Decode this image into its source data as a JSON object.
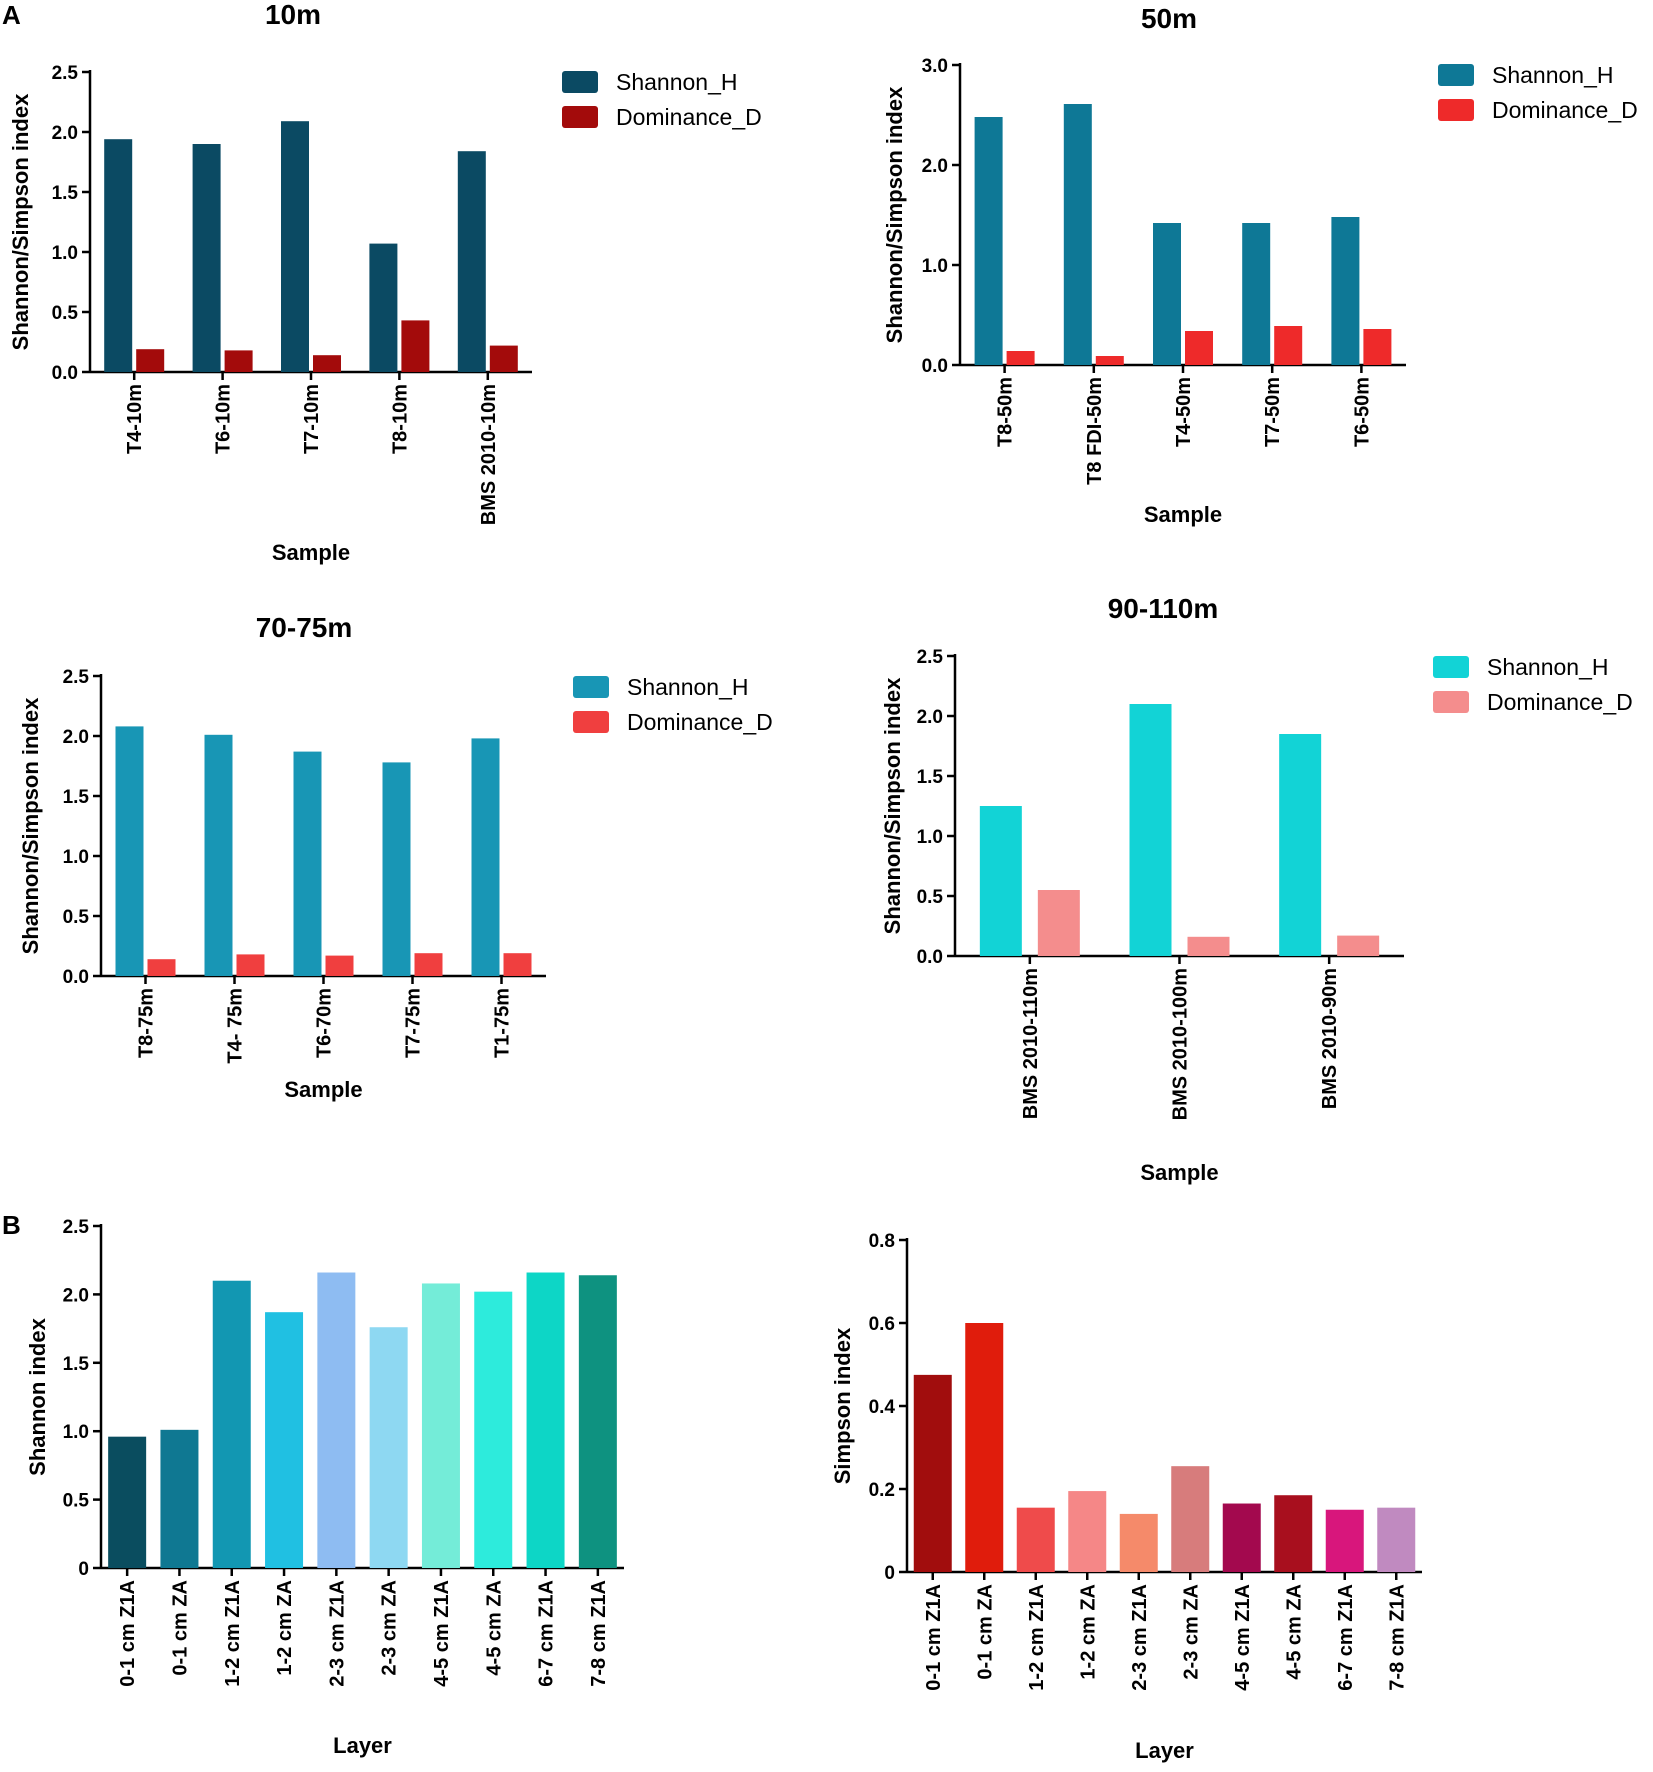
{
  "panel_labels": [
    "A",
    "B"
  ],
  "chart_data": [
    {
      "type": "bar",
      "title": "10m",
      "xlabel": "Sample",
      "ylabel": "Shannon/Simpson index",
      "ylim": [
        0,
        2.5
      ],
      "yticks": [
        "0.0",
        "0.5",
        "1.0",
        "1.5",
        "2.0",
        "2.5"
      ],
      "categories": [
        "T4-10m",
        "T6-10m",
        "T7-10m",
        "T8-10m",
        "BMS 2010-10m"
      ],
      "series": [
        {
          "name": "Shannon_H",
          "color": "#0b4a63",
          "values": [
            1.94,
            1.9,
            2.09,
            1.07,
            1.84
          ]
        },
        {
          "name": "Dominance_D",
          "color": "#a30b0b",
          "values": [
            0.19,
            0.18,
            0.14,
            0.43,
            0.22
          ]
        }
      ]
    },
    {
      "type": "bar",
      "title": "50m",
      "xlabel": "Sample",
      "ylabel": "Shannon/Simpson index",
      "ylim": [
        0,
        3.0
      ],
      "yticks": [
        "0.0",
        "1.0",
        "2.0",
        "3.0"
      ],
      "categories": [
        "T8-50m",
        "T8 FDI-50m",
        "T4-50m",
        "T7-50m",
        "T6-50m"
      ],
      "series": [
        {
          "name": "Shannon_H",
          "color": "#0e7896",
          "values": [
            2.48,
            2.61,
            1.42,
            1.42,
            1.48
          ]
        },
        {
          "name": "Dominance_D",
          "color": "#ee2a2a",
          "values": [
            0.14,
            0.09,
            0.34,
            0.39,
            0.36
          ]
        }
      ]
    },
    {
      "type": "bar",
      "title": "70-75m",
      "xlabel": "Sample",
      "ylabel": "Shannon/Simpson index",
      "ylim": [
        0,
        2.5
      ],
      "yticks": [
        "0.0",
        "0.5",
        "1.0",
        "1.5",
        "2.0",
        "2.5"
      ],
      "categories": [
        "T8-75m",
        "T4- 75m",
        "T6-70m",
        "T7-75m",
        "T1-75m"
      ],
      "series": [
        {
          "name": "Shannon_H",
          "color": "#1896b5",
          "values": [
            2.08,
            2.01,
            1.87,
            1.78,
            1.98
          ]
        },
        {
          "name": "Dominance_D",
          "color": "#f03f3f",
          "values": [
            0.14,
            0.18,
            0.17,
            0.19,
            0.19
          ]
        }
      ]
    },
    {
      "type": "bar",
      "title": "90-110m",
      "xlabel": "Sample",
      "ylabel": "Shannon/Simpson index",
      "ylim": [
        0,
        2.5
      ],
      "yticks": [
        "0.0",
        "0.5",
        "1.0",
        "1.5",
        "2.0",
        "2.5"
      ],
      "categories": [
        "BMS 2010-110m",
        "BMS 2010-100m",
        "BMS 2010-90m"
      ],
      "series": [
        {
          "name": "Shannon_H",
          "color": "#12d3d6",
          "values": [
            1.25,
            2.1,
            1.85
          ]
        },
        {
          "name": "Dominance_D",
          "color": "#f48d8d",
          "values": [
            0.55,
            0.16,
            0.17
          ]
        }
      ]
    },
    {
      "type": "bar",
      "title": "",
      "xlabel": "Layer",
      "ylabel": "Shannon index",
      "ylim": [
        0,
        2.5
      ],
      "yticks": [
        "0",
        "0.5",
        "1.0",
        "1.5",
        "2.0",
        "2.5"
      ],
      "categories": [
        "0-1 cm Z1A",
        "0-1 cm ZA",
        "1-2 cm Z1A",
        "1-2 cm ZA",
        "2-3 cm Z1A",
        "2-3 cm ZA",
        "4-5 cm Z1A",
        "4-5 cm ZA",
        "6-7 cm Z1A",
        "7-8 cm Z1A"
      ],
      "values": [
        0.96,
        1.01,
        2.1,
        1.87,
        2.16,
        1.76,
        2.08,
        2.02,
        2.16,
        2.14
      ],
      "colors": [
        "#0a4d5f",
        "#0f7892",
        "#1297b2",
        "#20c0e2",
        "#8ebcf2",
        "#8ed8f2",
        "#74ecd8",
        "#2debdc",
        "#0dd6c6",
        "#0e9280"
      ]
    },
    {
      "type": "bar",
      "title": "",
      "xlabel": "Layer",
      "ylabel": "Simpson index",
      "ylim": [
        0,
        0.8
      ],
      "yticks": [
        "0",
        "0.2",
        "0.4",
        "0.6",
        "0.8"
      ],
      "categories": [
        "0-1 cm Z1A",
        "0-1 cm ZA",
        "1-2 cm Z1A",
        "1-2 cm ZA",
        "2-3 cm Z1A",
        "2-3 cm ZA",
        "4-5 cm Z1A",
        "4-5 cm ZA",
        "6-7 cm Z1A",
        "7-8 cm Z1A"
      ],
      "values": [
        0.475,
        0.6,
        0.155,
        0.195,
        0.14,
        0.255,
        0.165,
        0.185,
        0.15,
        0.155
      ],
      "colors": [
        "#a10d0d",
        "#e01c0c",
        "#ef4b4b",
        "#f58787",
        "#f58a6a",
        "#d77c7c",
        "#a3094e",
        "#a80f1e",
        "#d8167c",
        "#c08ac0"
      ]
    }
  ]
}
